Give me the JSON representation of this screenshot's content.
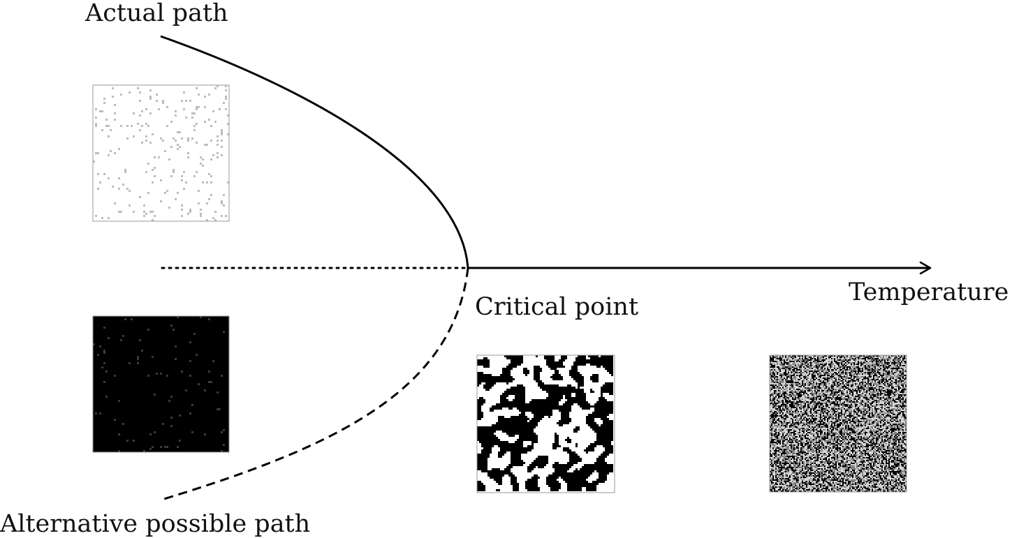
{
  "labels": {
    "actual_path": "Actual path",
    "alternative_path": "Alternative possible path",
    "critical_point": "Critical point",
    "temperature": "Temperature"
  },
  "snapshots": [
    {
      "name": "ordered-up-state",
      "base_color": "#ffffff",
      "speck_color": "#bdbdbd",
      "speck_fraction": 0.05
    },
    {
      "name": "ordered-down-state",
      "base_color": "#000000",
      "speck_color": "#3a3a3a",
      "speck_fraction": 0.02
    },
    {
      "name": "critical-state",
      "base_color": "#ffffff",
      "speck_color": "#000000",
      "speck_fraction": 0.5
    },
    {
      "name": "disordered-state",
      "base_color": "#7f7f7f",
      "speck_color": "#000000",
      "speck_fraction": 0.5
    }
  ],
  "colors": {
    "line": "#000000",
    "text": "#111111"
  }
}
